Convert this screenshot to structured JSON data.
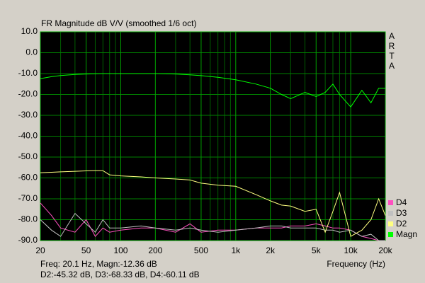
{
  "chart_data": {
    "type": "line",
    "title": "FR Magnitude dB V/V (smoothed 1/6 oct)",
    "side_label": "ARTA",
    "xlabel": "Frequency (Hz)",
    "xscale": "log",
    "grid": true,
    "status_lines": [
      "Freq: 20.1 Hz, Magn:-12.36 dB",
      "D2:-45.32 dB, D3:-68.33 dB, D4:-60.11 dB"
    ],
    "xlim": [
      20,
      20000
    ],
    "ylim": [
      -90,
      10
    ],
    "xticks": [
      20,
      50,
      100,
      200,
      500,
      {
        "value": 1000,
        "label": "1k"
      },
      {
        "value": 2000,
        "label": "2k"
      },
      {
        "value": 5000,
        "label": "5k"
      },
      {
        "value": 10000,
        "label": "10k"
      },
      {
        "value": 20000,
        "label": "20k"
      }
    ],
    "xminorticks": [
      30,
      40,
      60,
      70,
      80,
      90,
      300,
      400,
      600,
      700,
      800,
      900,
      3000,
      4000,
      6000,
      7000,
      8000,
      9000
    ],
    "yticks": [
      {
        "value": 10,
        "label": "10.0"
      },
      {
        "value": 0,
        "label": "0.0"
      },
      {
        "value": -10,
        "label": "-10.0"
      },
      {
        "value": -20,
        "label": "-20.0"
      },
      {
        "value": -30,
        "label": "-30.0"
      },
      {
        "value": -40,
        "label": "-40.0"
      },
      {
        "value": -50,
        "label": "-50.0"
      },
      {
        "value": -60,
        "label": "-60.0"
      },
      {
        "value": -70,
        "label": "-70.0"
      },
      {
        "value": -80,
        "label": "-80.0"
      },
      {
        "value": -90,
        "label": "-90.0"
      }
    ],
    "x": [
      20,
      25,
      30,
      40,
      50,
      60,
      70,
      80,
      100,
      150,
      200,
      300,
      400,
      500,
      700,
      1000,
      1500,
      2000,
      2500,
      3000,
      4000,
      5000,
      6000,
      7000,
      8000,
      10000,
      12500,
      15000,
      17500,
      20000
    ],
    "series": [
      {
        "name": "D4",
        "color": "#ff4fc0",
        "values": [
          -72,
          -78,
          -84,
          -86,
          -80,
          -88,
          -84,
          -86,
          -85,
          -84,
          -84,
          -86,
          -82,
          -86,
          -85,
          -85,
          -84,
          -84,
          -84,
          -83,
          -83,
          -82,
          -83,
          -84,
          -84,
          -85,
          -88,
          -89,
          -90,
          -90
        ]
      },
      {
        "name": "D3",
        "color": "#c0c0c0",
        "values": [
          -80,
          -85,
          -88,
          -77,
          -82,
          -86,
          -80,
          -84,
          -84,
          -83,
          -84,
          -85,
          -84,
          -85,
          -86,
          -85,
          -84,
          -83,
          -83,
          -84,
          -84,
          -84,
          -85,
          -85,
          -86,
          -85,
          -88,
          -87,
          -90,
          -90
        ]
      },
      {
        "name": "D2",
        "color": "#ffff80",
        "values": [
          -57.5,
          -57.3,
          -57.1,
          -56.8,
          -56.6,
          -56.5,
          -56.5,
          -58.5,
          -59,
          -59.5,
          -60,
          -60.5,
          -61,
          -62.5,
          -63.5,
          -64,
          -68,
          -71,
          -73,
          -73.5,
          -76,
          -75,
          -86,
          -76,
          -67,
          -88,
          -85,
          -80,
          -70,
          -78
        ]
      },
      {
        "name": "Magn",
        "color": "#00ff00",
        "values": [
          -12.4,
          -11.5,
          -10.9,
          -10.4,
          -10.2,
          -10.1,
          -10,
          -10,
          -10,
          -10,
          -10,
          -10.2,
          -10.6,
          -11,
          -11.8,
          -13,
          -15,
          -17,
          -20,
          -22,
          -19,
          -21,
          -19,
          -15,
          -20,
          -26,
          -18,
          -24,
          -17,
          -17
        ]
      }
    ]
  }
}
